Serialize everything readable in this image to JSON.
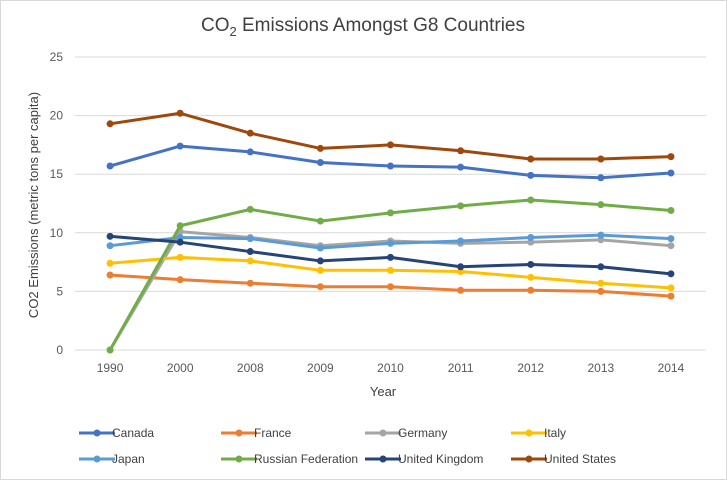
{
  "chart_data": {
    "type": "line",
    "title": "CO",
    "title_sub": "2",
    "title_rest": " Emissions Amongst G8 Countries",
    "xlabel": "Year",
    "ylabel": "CO2 Emissions (metric tons per capita)",
    "ylim": [
      0,
      25
    ],
    "yticks": [
      "0",
      "5",
      "10",
      "15",
      "20",
      "25"
    ],
    "ytick_values": [
      0,
      5,
      10,
      15,
      20,
      25
    ],
    "categories": [
      "1990",
      "2000",
      "2008",
      "2009",
      "2010",
      "2011",
      "2012",
      "2013",
      "2014"
    ],
    "grid": true,
    "legend_position": "bottom",
    "series": [
      {
        "name": "Canada",
        "color": "#4472C4",
        "values": [
          15.7,
          17.4,
          16.9,
          16.0,
          15.7,
          15.6,
          14.9,
          14.7,
          15.1
        ]
      },
      {
        "name": "France",
        "color": "#ED7D31",
        "values": [
          6.4,
          6.0,
          5.7,
          5.4,
          5.4,
          5.1,
          5.1,
          5.0,
          4.6
        ]
      },
      {
        "name": "Germany",
        "color": "#A5A5A5",
        "values": [
          0.0,
          10.1,
          9.6,
          8.9,
          9.3,
          9.1,
          9.2,
          9.4,
          8.9
        ]
      },
      {
        "name": "Italy",
        "color": "#FFC000",
        "values": [
          7.4,
          7.9,
          7.6,
          6.8,
          6.8,
          6.7,
          6.2,
          5.7,
          5.3
        ]
      },
      {
        "name": "Japan",
        "color": "#5B9BD5",
        "values": [
          8.9,
          9.6,
          9.5,
          8.7,
          9.1,
          9.3,
          9.6,
          9.8,
          9.5
        ]
      },
      {
        "name": "Russian Federation",
        "color": "#70AD47",
        "values": [
          0.0,
          10.6,
          12.0,
          11.0,
          11.7,
          12.3,
          12.8,
          12.4,
          11.9
        ]
      },
      {
        "name": "United Kingdom",
        "color": "#264478",
        "values": [
          9.7,
          9.2,
          8.4,
          7.6,
          7.9,
          7.1,
          7.3,
          7.1,
          6.5
        ]
      },
      {
        "name": "United States",
        "color": "#9E480E",
        "values": [
          19.3,
          20.2,
          18.5,
          17.2,
          17.5,
          17.0,
          16.3,
          16.3,
          16.5
        ]
      }
    ]
  }
}
